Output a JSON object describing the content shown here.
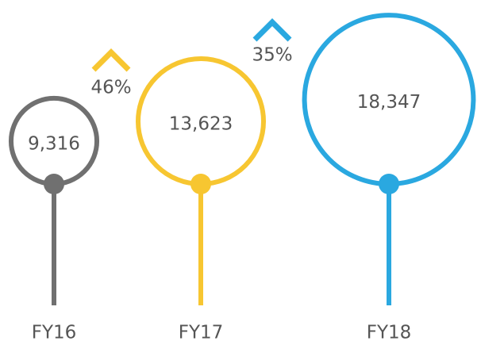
{
  "chart_data": {
    "type": "bubble",
    "categories": [
      "FY16",
      "FY17",
      "FY18"
    ],
    "values": [
      9316,
      13623,
      18347
    ],
    "value_labels": [
      "9,316",
      "13,623",
      "18,347"
    ],
    "colors": [
      "#707070",
      "#f7c631",
      "#2aa8e0"
    ],
    "annotations": [
      "46%",
      "35%"
    ]
  }
}
